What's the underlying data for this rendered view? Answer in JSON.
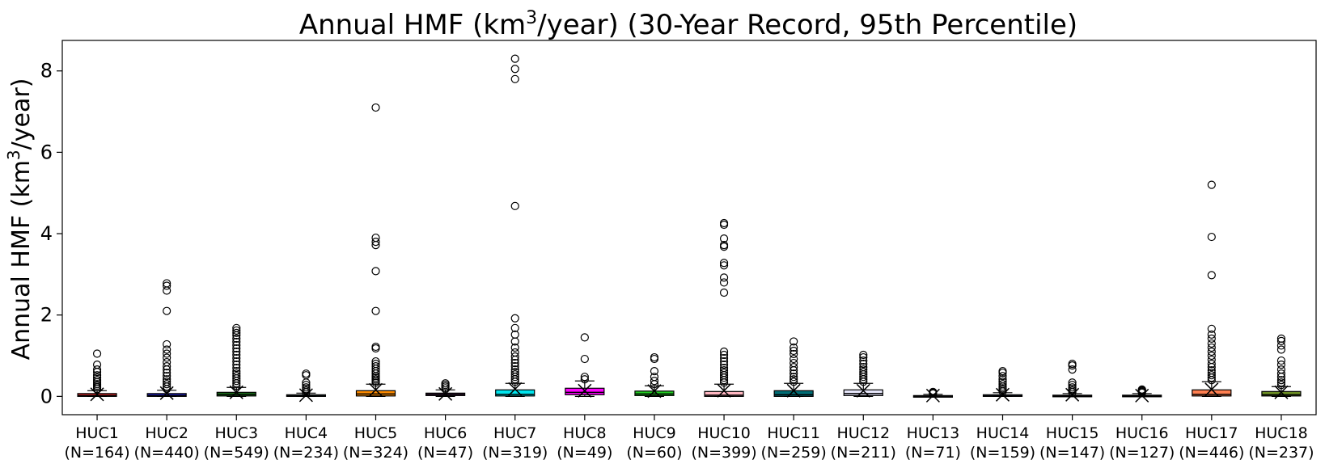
{
  "chart_data": {
    "type": "boxplot",
    "title": "Annual HMF (km3/year) (30-Year Record, 95th Percentile)",
    "title_parts": {
      "before_sup": "Annual HMF (km",
      "sup": "3",
      "after_sup": "/year) (30-Year Record, 95th Percentile)"
    },
    "ylabel": "Annual HMF (km3/year)",
    "ylabel_parts": {
      "before_sup": "Annual HMF (km",
      "sup": "3",
      "after_sup": "/year)"
    },
    "xlabel": "",
    "ylim": [
      -0.45,
      8.75
    ],
    "yticks": [
      0,
      2,
      4,
      6,
      8
    ],
    "ytick_labels": [
      "0",
      "2",
      "4",
      "6",
      "8"
    ],
    "grid": false,
    "mean_marker": "x",
    "categories": [
      {
        "name": "HUC1",
        "n_label": "(N=164)",
        "color": "#d62728",
        "q1": 0.0,
        "median": 0.02,
        "q3": 0.07,
        "whisker_low": 0.0,
        "whisker_high": 0.14,
        "mean": 0.05,
        "outliers": [
          0.18,
          0.22,
          0.26,
          0.3,
          0.35,
          0.4,
          0.46,
          0.52,
          0.6,
          0.66,
          0.78,
          1.05
        ]
      },
      {
        "name": "HUC2",
        "n_label": "(N=440)",
        "color": "#1f1fbf",
        "q1": 0.0,
        "median": 0.02,
        "q3": 0.07,
        "whisker_low": 0.0,
        "whisker_high": 0.15,
        "mean": 0.08,
        "outliers": [
          0.18,
          0.24,
          0.3,
          0.36,
          0.42,
          0.5,
          0.58,
          0.66,
          0.74,
          0.84,
          0.95,
          1.05,
          1.15,
          1.28,
          2.1,
          2.6,
          2.72,
          2.78
        ]
      },
      {
        "name": "HUC3",
        "n_label": "(N=549)",
        "color": "#1b7a1b",
        "q1": 0.01,
        "median": 0.05,
        "q3": 0.1,
        "whisker_low": 0.0,
        "whisker_high": 0.22,
        "mean": 0.1,
        "outliers": [
          0.26,
          0.32,
          0.38,
          0.44,
          0.5,
          0.56,
          0.62,
          0.7,
          0.78,
          0.86,
          0.94,
          1.02,
          1.1,
          1.18,
          1.26,
          1.34,
          1.42,
          1.5,
          1.56,
          1.62,
          1.68
        ]
      },
      {
        "name": "HUC4",
        "n_label": "(N=234)",
        "color": "#2f4f4f",
        "q1": 0.0,
        "median": 0.01,
        "q3": 0.04,
        "whisker_low": 0.0,
        "whisker_high": 0.08,
        "mean": 0.03,
        "outliers": [
          0.1,
          0.14,
          0.18,
          0.22,
          0.28,
          0.34,
          0.52,
          0.56
        ]
      },
      {
        "name": "HUC5",
        "n_label": "(N=324)",
        "color": "#ff8c00",
        "q1": 0.01,
        "median": 0.06,
        "q3": 0.14,
        "whisker_low": 0.0,
        "whisker_high": 0.3,
        "mean": 0.16,
        "outliers": [
          0.34,
          0.38,
          0.42,
          0.46,
          0.5,
          0.56,
          0.62,
          0.68,
          0.74,
          0.8,
          0.86,
          1.18,
          1.22,
          2.1,
          3.08,
          3.72,
          3.8,
          3.9,
          7.1
        ]
      },
      {
        "name": "HUC6",
        "n_label": "(N=47)",
        "color": "#8b3a8b",
        "q1": 0.02,
        "median": 0.05,
        "q3": 0.08,
        "whisker_low": 0.0,
        "whisker_high": 0.16,
        "mean": 0.06,
        "outliers": [
          0.2,
          0.24,
          0.28,
          0.32
        ]
      },
      {
        "name": "HUC7",
        "n_label": "(N=319)",
        "color": "#00e5ee",
        "q1": 0.01,
        "median": 0.05,
        "q3": 0.16,
        "whisker_low": 0.0,
        "whisker_high": 0.32,
        "mean": 0.18,
        "outliers": [
          0.36,
          0.42,
          0.48,
          0.54,
          0.6,
          0.66,
          0.74,
          0.82,
          0.9,
          0.98,
          1.08,
          1.2,
          1.35,
          1.52,
          1.68,
          1.92,
          4.68,
          7.8,
          8.05,
          8.3
        ]
      },
      {
        "name": "HUC8",
        "n_label": "(N=49)",
        "color": "#ff00ff",
        "q1": 0.04,
        "median": 0.1,
        "q3": 0.2,
        "whisker_low": 0.0,
        "whisker_high": 0.38,
        "mean": 0.14,
        "outliers": [
          0.42,
          0.48,
          0.92,
          1.45
        ]
      },
      {
        "name": "HUC9",
        "n_label": "(N=60)",
        "color": "#22cc22",
        "q1": 0.02,
        "median": 0.06,
        "q3": 0.13,
        "whisker_low": 0.0,
        "whisker_high": 0.26,
        "mean": 0.13,
        "outliers": [
          0.3,
          0.38,
          0.48,
          0.62,
          0.92,
          0.96
        ]
      },
      {
        "name": "HUC10",
        "n_label": "(N=399)",
        "color": "#ffb6c1",
        "q1": 0.0,
        "median": 0.03,
        "q3": 0.12,
        "whisker_low": 0.0,
        "whisker_high": 0.3,
        "mean": 0.14,
        "outliers": [
          0.34,
          0.4,
          0.46,
          0.52,
          0.58,
          0.64,
          0.7,
          0.78,
          0.86,
          0.94,
          1.02,
          1.1,
          2.55,
          2.8,
          2.92,
          3.22,
          3.28,
          3.68,
          3.72,
          3.88,
          4.22,
          4.26
        ]
      },
      {
        "name": "HUC11",
        "n_label": "(N=259)",
        "color": "#006d75",
        "q1": 0.0,
        "median": 0.04,
        "q3": 0.14,
        "whisker_low": 0.0,
        "whisker_high": 0.32,
        "mean": 0.14,
        "outliers": [
          0.36,
          0.42,
          0.48,
          0.56,
          0.64,
          0.72,
          0.82,
          0.92,
          1.04,
          1.12,
          1.2,
          1.35
        ]
      },
      {
        "name": "HUC12",
        "n_label": "(N=211)",
        "color": "#e6e6fa",
        "q1": 0.02,
        "median": 0.07,
        "q3": 0.16,
        "whisker_low": 0.0,
        "whisker_high": 0.32,
        "mean": 0.14,
        "outliers": [
          0.36,
          0.42,
          0.48,
          0.54,
          0.6,
          0.66,
          0.72,
          0.8,
          0.88,
          0.96,
          1.02
        ]
      },
      {
        "name": "HUC13",
        "n_label": "(N=71)",
        "color": "#1a1a1a",
        "q1": 0.0,
        "median": 0.01,
        "q3": 0.02,
        "whisker_low": 0.0,
        "whisker_high": 0.05,
        "mean": 0.02,
        "outliers": [
          0.07,
          0.09,
          0.11
        ]
      },
      {
        "name": "HUC14",
        "n_label": "(N=159)",
        "color": "#1e3a5f",
        "q1": 0.0,
        "median": 0.01,
        "q3": 0.04,
        "whisker_low": 0.0,
        "whisker_high": 0.09,
        "mean": 0.04,
        "outliers": [
          0.12,
          0.16,
          0.2,
          0.24,
          0.3,
          0.36,
          0.42,
          0.5,
          0.58,
          0.62
        ]
      },
      {
        "name": "HUC15",
        "n_label": "(N=147)",
        "color": "#d8bfd8",
        "q1": 0.0,
        "median": 0.01,
        "q3": 0.03,
        "whisker_low": 0.0,
        "whisker_high": 0.07,
        "mean": 0.04,
        "outliers": [
          0.1,
          0.14,
          0.18,
          0.22,
          0.28,
          0.34,
          0.66,
          0.76,
          0.8
        ]
      },
      {
        "name": "HUC16",
        "n_label": "(N=127)",
        "color": "#3a1f1f",
        "q1": 0.0,
        "median": 0.01,
        "q3": 0.03,
        "whisker_low": 0.0,
        "whisker_high": 0.07,
        "mean": 0.02,
        "outliers": [
          0.09,
          0.11,
          0.13,
          0.15,
          0.17
        ]
      },
      {
        "name": "HUC17",
        "n_label": "(N=446)",
        "color": "#ff7f50",
        "q1": 0.01,
        "median": 0.05,
        "q3": 0.16,
        "whisker_low": 0.0,
        "whisker_high": 0.36,
        "mean": 0.17,
        "outliers": [
          0.4,
          0.46,
          0.52,
          0.58,
          0.64,
          0.72,
          0.8,
          0.9,
          1.0,
          1.1,
          1.2,
          1.3,
          1.42,
          1.52,
          1.66,
          2.98,
          3.92,
          5.2
        ]
      },
      {
        "name": "HUC18",
        "n_label": "(N=237)",
        "color": "#6b8e23",
        "q1": 0.01,
        "median": 0.04,
        "q3": 0.12,
        "whisker_low": 0.0,
        "whisker_high": 0.24,
        "mean": 0.1,
        "outliers": [
          0.28,
          0.34,
          0.4,
          0.48,
          0.56,
          0.66,
          0.78,
          0.88,
          1.15,
          1.25,
          1.36,
          1.42
        ]
      }
    ]
  }
}
